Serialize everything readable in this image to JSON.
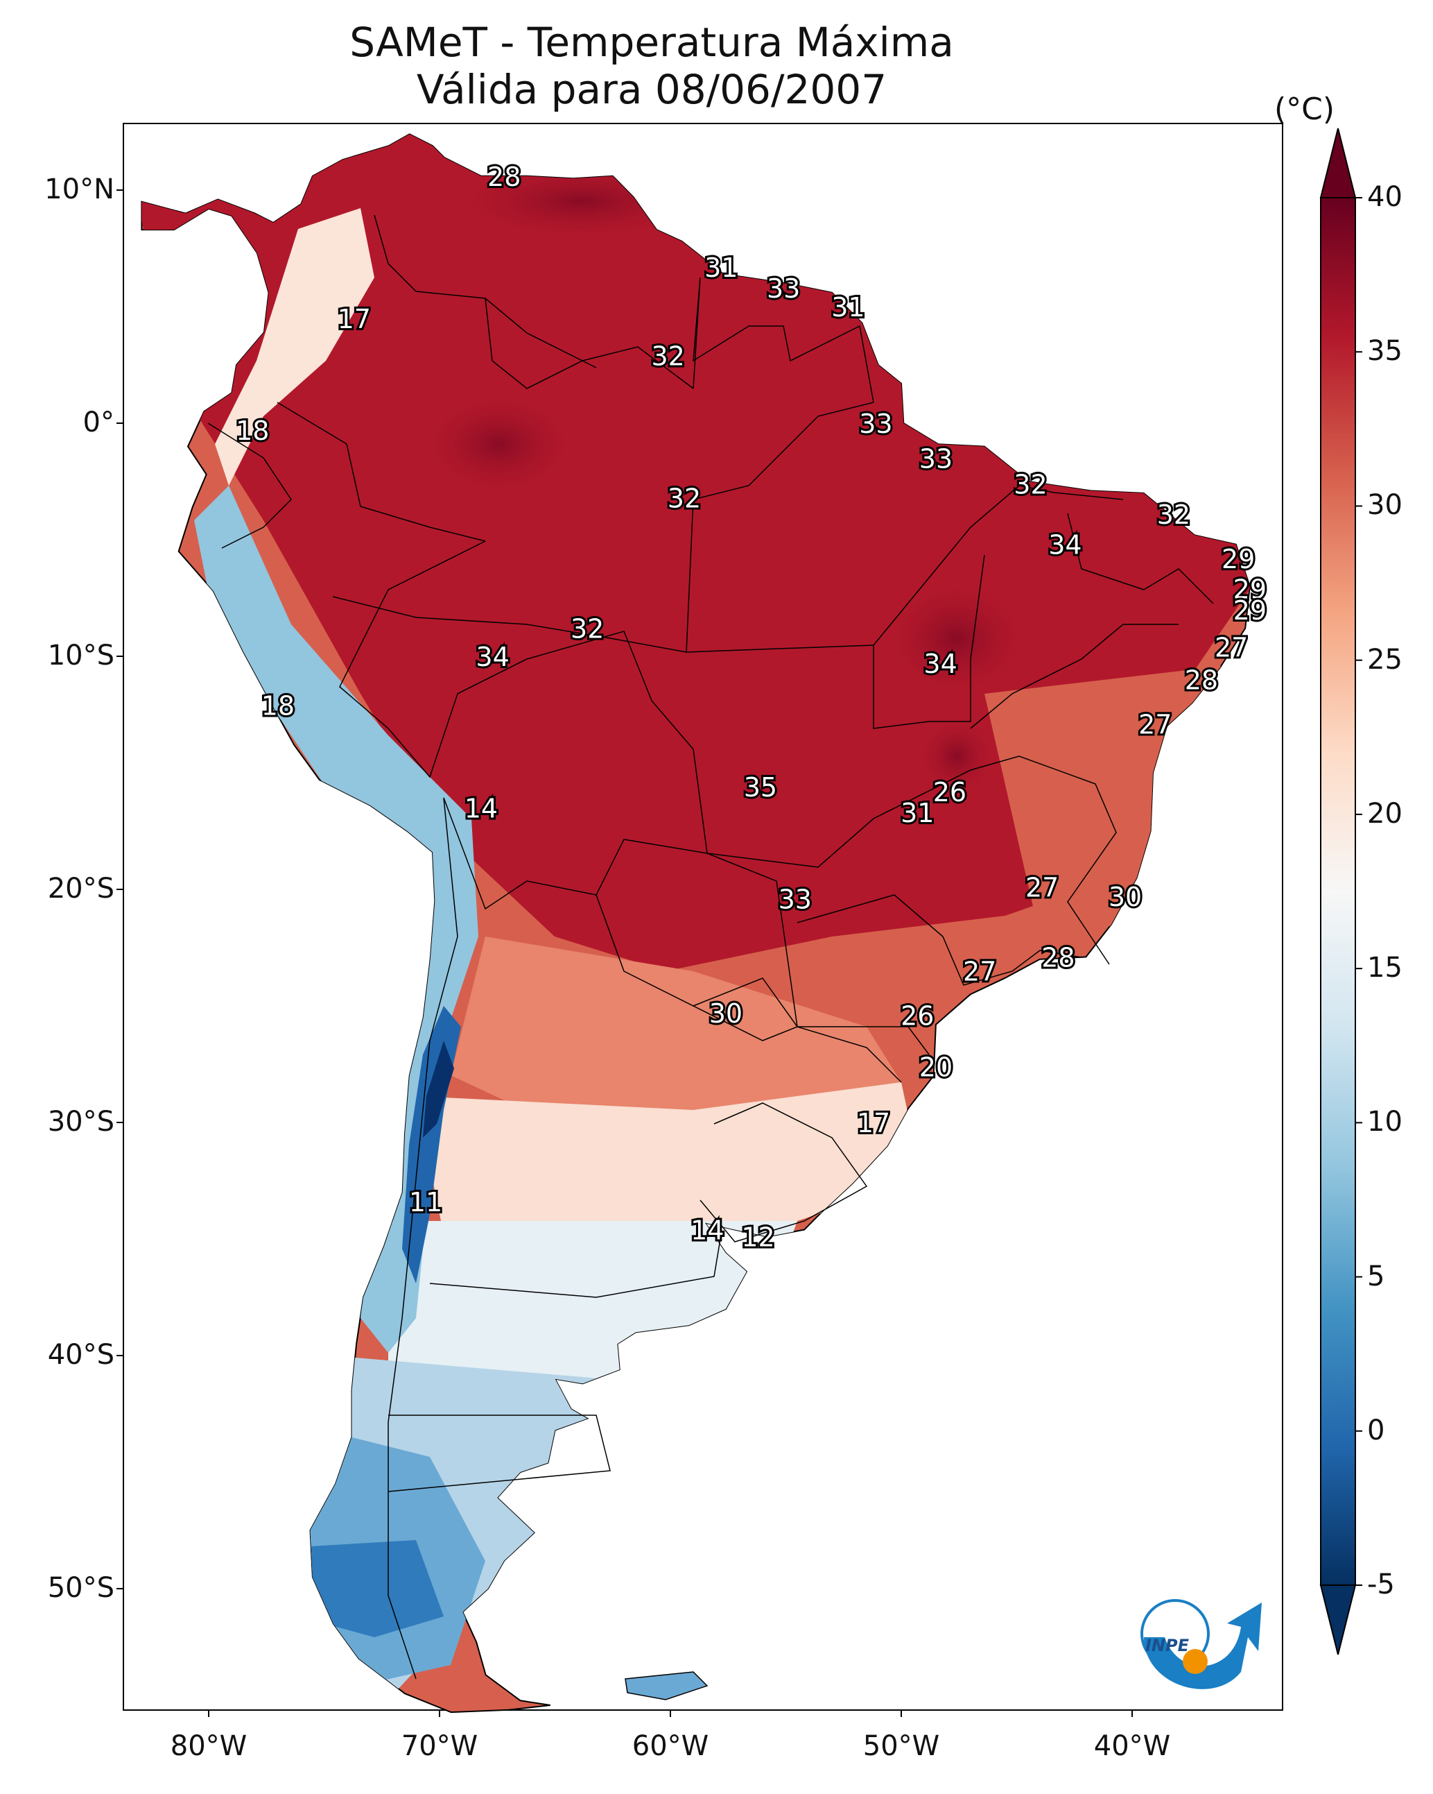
{
  "map": {
    "title_line1": "SAMeT - Temperatura Máxima",
    "title_line2": "Válida para 08/06/2007",
    "unit": "(°C)",
    "lat_labels": [
      "10°N",
      "0°",
      "10°S",
      "20°S",
      "30°S",
      "40°S",
      "50°S"
    ],
    "lon_labels": [
      "80°W",
      "70°W",
      "60°W",
      "50°W",
      "40°W"
    ],
    "colorbar_labels": [
      "40",
      "35",
      "30",
      "25",
      "20",
      "15",
      "10",
      "5",
      "0",
      "-5"
    ],
    "colorbar_range": [
      -5,
      40
    ],
    "colors": {
      "hot_dark": "#67001f",
      "hot": "#b2182b",
      "warm": "#d6604d",
      "mild": "#f4a582",
      "light": "#fddbc7",
      "neutral": "#f7f7f7",
      "cool_light": "#d1e5f0",
      "cool": "#92c5de",
      "cold": "#4393c3",
      "cold_mid": "#2166ac",
      "cold_dark": "#053061",
      "logo_blue": "#1a7fc4",
      "logo_orange": "#f39200"
    },
    "logo_text": "INPE",
    "point_labels": [
      {
        "lon": -67.2,
        "lat": 10.6,
        "value": "28"
      },
      {
        "lon": -73.7,
        "lat": 4.5,
        "value": "17"
      },
      {
        "lon": -78.1,
        "lat": -0.3,
        "value": "18"
      },
      {
        "lon": -57.8,
        "lat": 6.7,
        "value": "31"
      },
      {
        "lon": -55.1,
        "lat": 5.8,
        "value": "33"
      },
      {
        "lon": -52.3,
        "lat": 5.0,
        "value": "31"
      },
      {
        "lon": -60.1,
        "lat": 2.9,
        "value": "32"
      },
      {
        "lon": -51.1,
        "lat": 0.0,
        "value": "33"
      },
      {
        "lon": -48.5,
        "lat": -1.5,
        "value": "33"
      },
      {
        "lon": -44.4,
        "lat": -2.6,
        "value": "32"
      },
      {
        "lon": -59.4,
        "lat": -3.2,
        "value": "32"
      },
      {
        "lon": -38.2,
        "lat": -3.9,
        "value": "32"
      },
      {
        "lon": -42.9,
        "lat": -5.2,
        "value": "34"
      },
      {
        "lon": -35.4,
        "lat": -5.8,
        "value": "29"
      },
      {
        "lon": -34.9,
        "lat": -7.1,
        "value": "29"
      },
      {
        "lon": -34.9,
        "lat": -8.0,
        "value": "29"
      },
      {
        "lon": -63.6,
        "lat": -8.8,
        "value": "32"
      },
      {
        "lon": -67.7,
        "lat": -10.0,
        "value": "34"
      },
      {
        "lon": -48.3,
        "lat": -10.3,
        "value": "34"
      },
      {
        "lon": -35.7,
        "lat": -9.6,
        "value": "27"
      },
      {
        "lon": -37.0,
        "lat": -11.0,
        "value": "28"
      },
      {
        "lon": -39.0,
        "lat": -12.9,
        "value": "27"
      },
      {
        "lon": -77.0,
        "lat": -12.1,
        "value": "18"
      },
      {
        "lon": -47.9,
        "lat": -15.8,
        "value": "26"
      },
      {
        "lon": -49.3,
        "lat": -16.7,
        "value": "31"
      },
      {
        "lon": -56.1,
        "lat": -15.6,
        "value": "35"
      },
      {
        "lon": -68.2,
        "lat": -16.5,
        "value": "14"
      },
      {
        "lon": -43.9,
        "lat": -19.9,
        "value": "27"
      },
      {
        "lon": -40.3,
        "lat": -20.3,
        "value": "30"
      },
      {
        "lon": -54.6,
        "lat": -20.4,
        "value": "33"
      },
      {
        "lon": -43.2,
        "lat": -22.9,
        "value": "28"
      },
      {
        "lon": -46.6,
        "lat": -23.5,
        "value": "27"
      },
      {
        "lon": -49.3,
        "lat": -25.4,
        "value": "26"
      },
      {
        "lon": -57.6,
        "lat": -25.3,
        "value": "30"
      },
      {
        "lon": -48.5,
        "lat": -27.6,
        "value": "20"
      },
      {
        "lon": -51.2,
        "lat": -30.0,
        "value": "17"
      },
      {
        "lon": -70.6,
        "lat": -33.4,
        "value": "11"
      },
      {
        "lon": -58.4,
        "lat": -34.6,
        "value": "14"
      },
      {
        "lon": -56.2,
        "lat": -34.9,
        "value": "12"
      }
    ]
  }
}
